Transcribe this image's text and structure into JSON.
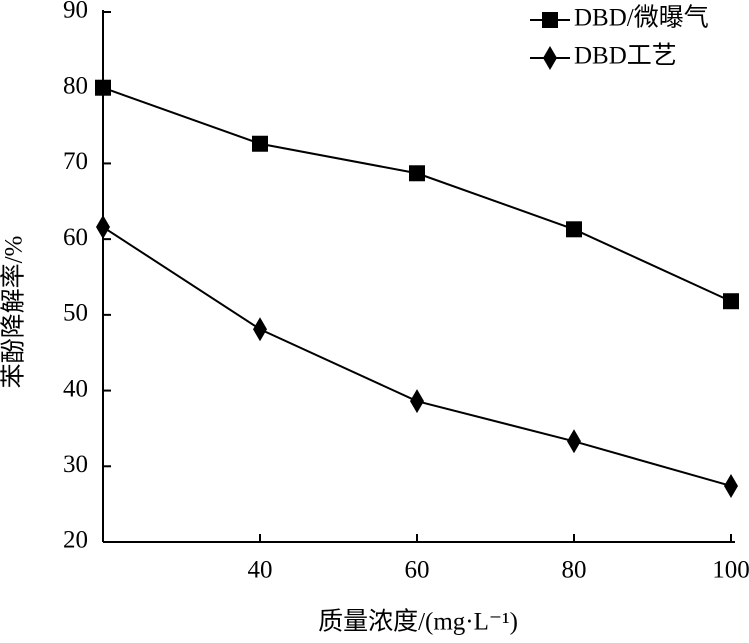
{
  "chart_data": {
    "type": "line",
    "x_label": "质量浓度/(mg·L⁻¹)",
    "y_label": "苯酚降解率/%",
    "x": [
      20,
      40,
      60,
      80,
      100
    ],
    "series": [
      {
        "name": "DBD/微曝气",
        "color": "#000000",
        "marker": "square",
        "values": [
          80,
          72.6,
          68.7,
          61.3,
          51.8
        ]
      },
      {
        "name": "DBD工艺",
        "color": "#000000",
        "marker": "diamond",
        "values": [
          61.6,
          48.1,
          38.6,
          33.3,
          27.4
        ]
      }
    ],
    "xlim": [
      20,
      100
    ],
    "xticks": [
      40,
      60,
      80,
      100
    ],
    "ylim": [
      20,
      90
    ],
    "yticks": [
      20,
      30,
      40,
      50,
      60,
      70,
      80,
      90
    ],
    "legend": "upper right",
    "grid": false
  }
}
